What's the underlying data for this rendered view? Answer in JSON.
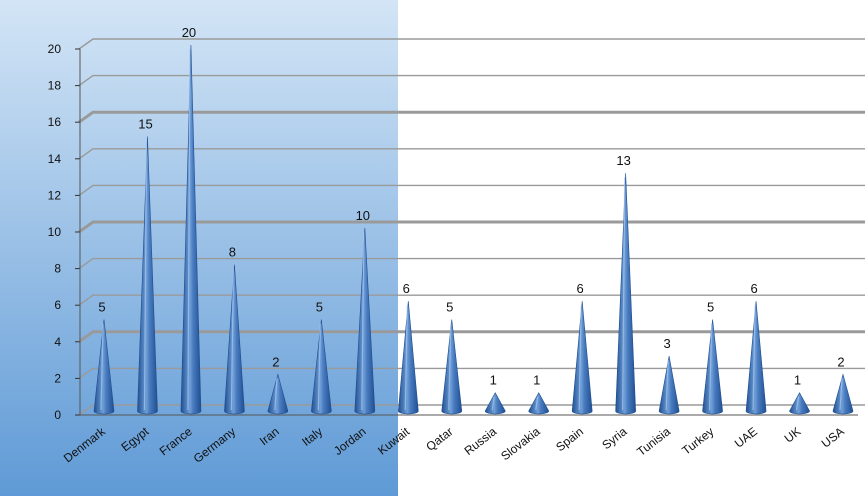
{
  "chart_data": {
    "type": "bar",
    "bar_shape": "cone",
    "title": "",
    "xlabel": "",
    "ylabel": "",
    "ylim": [
      0,
      20
    ],
    "y_ticks": [
      "0",
      "2",
      "4",
      "6",
      "8",
      "10",
      "12",
      "14",
      "16",
      "18",
      "20"
    ],
    "grid": true,
    "legend": "none",
    "categories": [
      "Denmark",
      "Egypt",
      "France",
      "Germany",
      "Iran",
      "Italy",
      "Jordan",
      "Kuwait",
      "Qatar",
      "Russia",
      "Slovakia",
      "Spain",
      "Syria",
      "Tunisia",
      "Turkey",
      "UAE",
      "UK",
      "USA"
    ],
    "values": [
      5,
      15,
      20,
      8,
      2,
      5,
      10,
      6,
      5,
      1,
      1,
      6,
      13,
      3,
      5,
      6,
      1,
      2
    ],
    "colors": {
      "bar": "#4a7cc0",
      "bar_dark": "#1f4f91",
      "bar_light": "#a9c8ee",
      "panel_blue": "#6fa6db",
      "gridline": "#9a9a9a",
      "text": "#111111"
    }
  }
}
